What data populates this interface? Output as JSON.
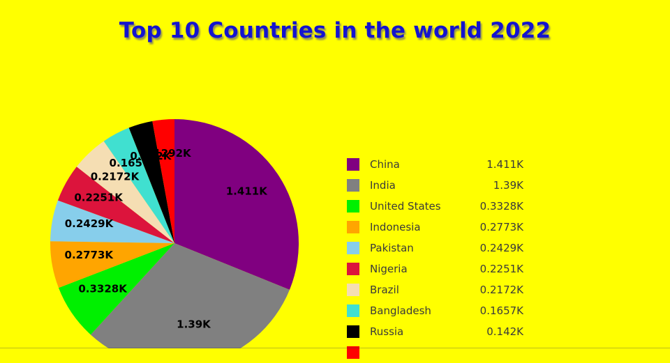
{
  "title": {
    "text": "Top 10 Countries in the world 2022"
  },
  "theme": {
    "background": "#FFFF00",
    "title_color": "#1414CE",
    "slice_label_color": "#000000",
    "legend_text_color": "#3A3A3A"
  },
  "chart_data": {
    "type": "pie",
    "title": "Top 10 Countries in the world 2022",
    "unit_suffix": "K",
    "start": "top",
    "direction": "clockwise",
    "legend_position": "right",
    "slice_labels": "value-on-slice",
    "slices": [
      {
        "label": "China",
        "value": 1.411,
        "display_value": "1.411K",
        "color": "#800080"
      },
      {
        "label": "India",
        "value": 1.39,
        "display_value": "1.39K",
        "color": "#808080"
      },
      {
        "label": "United States",
        "value": 0.3328,
        "display_value": "0.3328K",
        "color": "#00F000"
      },
      {
        "label": "Indonesia",
        "value": 0.2773,
        "display_value": "0.2773K",
        "color": "#FFA500"
      },
      {
        "label": "Pakistan",
        "value": 0.2429,
        "display_value": "0.2429K",
        "color": "#87CEEB"
      },
      {
        "label": "Nigeria",
        "value": 0.2251,
        "display_value": "0.2251K",
        "color": "#DC143C"
      },
      {
        "label": "Brazil",
        "value": 0.2172,
        "display_value": "0.2172K",
        "color": "#F5DEB3"
      },
      {
        "label": "Bangladesh",
        "value": 0.1657,
        "display_value": "0.1657K",
        "color": "#40E0D0"
      },
      {
        "label": "Russia",
        "value": 0.142,
        "display_value": "0.142K",
        "color": "#000000"
      },
      {
        "label": "",
        "value": 0.1292,
        "display_value": "0.1292K",
        "color": "#FF0000"
      }
    ]
  }
}
